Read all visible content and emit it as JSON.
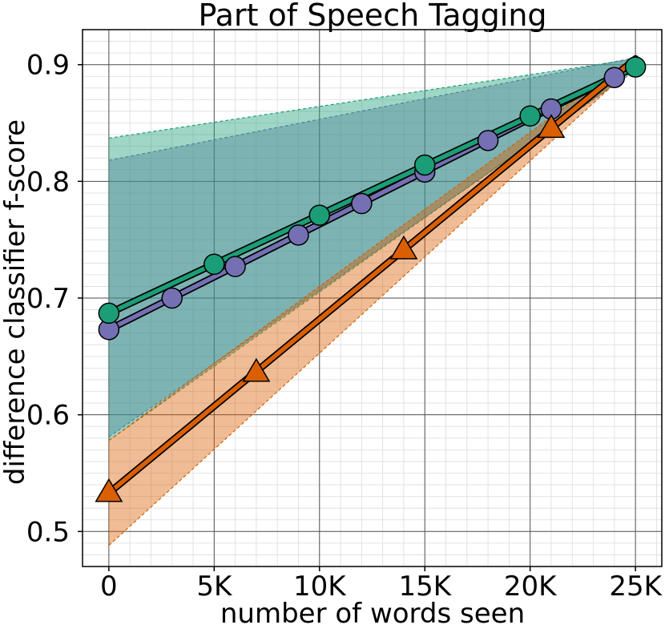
{
  "chart_data": {
    "type": "line",
    "title": "Part of Speech Tagging",
    "xlabel": "number of words seen",
    "ylabel": "difference classifier f-score",
    "xlim": [
      -1250,
      26250
    ],
    "ylim": [
      0.47,
      0.93
    ],
    "x_ticks": [
      0,
      5000,
      10000,
      15000,
      20000,
      25000
    ],
    "x_tick_labels": [
      "0",
      "5K",
      "10K",
      "15K",
      "20K",
      "25K"
    ],
    "y_ticks": [
      0.5,
      0.6,
      0.7,
      0.8,
      0.9
    ],
    "y_tick_labels": [
      "0.5",
      "0.6",
      "0.7",
      "0.8",
      "0.9"
    ],
    "grid": true,
    "minor_grid": true,
    "legend": "none",
    "series": [
      {
        "color": "#7570b3",
        "marker": "circle",
        "x": [
          0,
          3000,
          6000,
          9000,
          12000,
          15000,
          18000,
          21000,
          24000
        ],
        "y": [
          0.673,
          0.7,
          0.727,
          0.754,
          0.781,
          0.808,
          0.835,
          0.862,
          0.889
        ],
        "line": {
          "x": [
            0,
            25000
          ],
          "y": [
            0.673,
            0.899
          ]
        },
        "band": {
          "x": [
            0,
            25000
          ],
          "lower": [
            0.581,
            0.895
          ],
          "upper": [
            0.818,
            0.906
          ]
        }
      },
      {
        "color": "#1b9e77",
        "marker": "circle",
        "x": [
          0,
          5000,
          10000,
          15000,
          20000,
          25000
        ],
        "y": [
          0.687,
          0.729,
          0.771,
          0.814,
          0.856,
          0.898
        ],
        "line": {
          "x": [
            0,
            25000
          ],
          "y": [
            0.687,
            0.898
          ]
        },
        "band": {
          "x": [
            0,
            25000
          ],
          "lower": [
            0.578,
            0.896
          ],
          "upper": [
            0.837,
            0.905
          ]
        }
      },
      {
        "color": "#d95f02",
        "marker": "triangle",
        "x": [
          0,
          7000,
          14000,
          21000
        ],
        "y": [
          0.533,
          0.636,
          0.741,
          0.845
        ],
        "line": {
          "x": [
            0,
            25000
          ],
          "y": [
            0.533,
            0.905
          ]
        },
        "band": {
          "x": [
            0,
            25000
          ],
          "lower": [
            0.488,
            0.9
          ],
          "upper": [
            0.578,
            0.908
          ]
        }
      }
    ]
  }
}
